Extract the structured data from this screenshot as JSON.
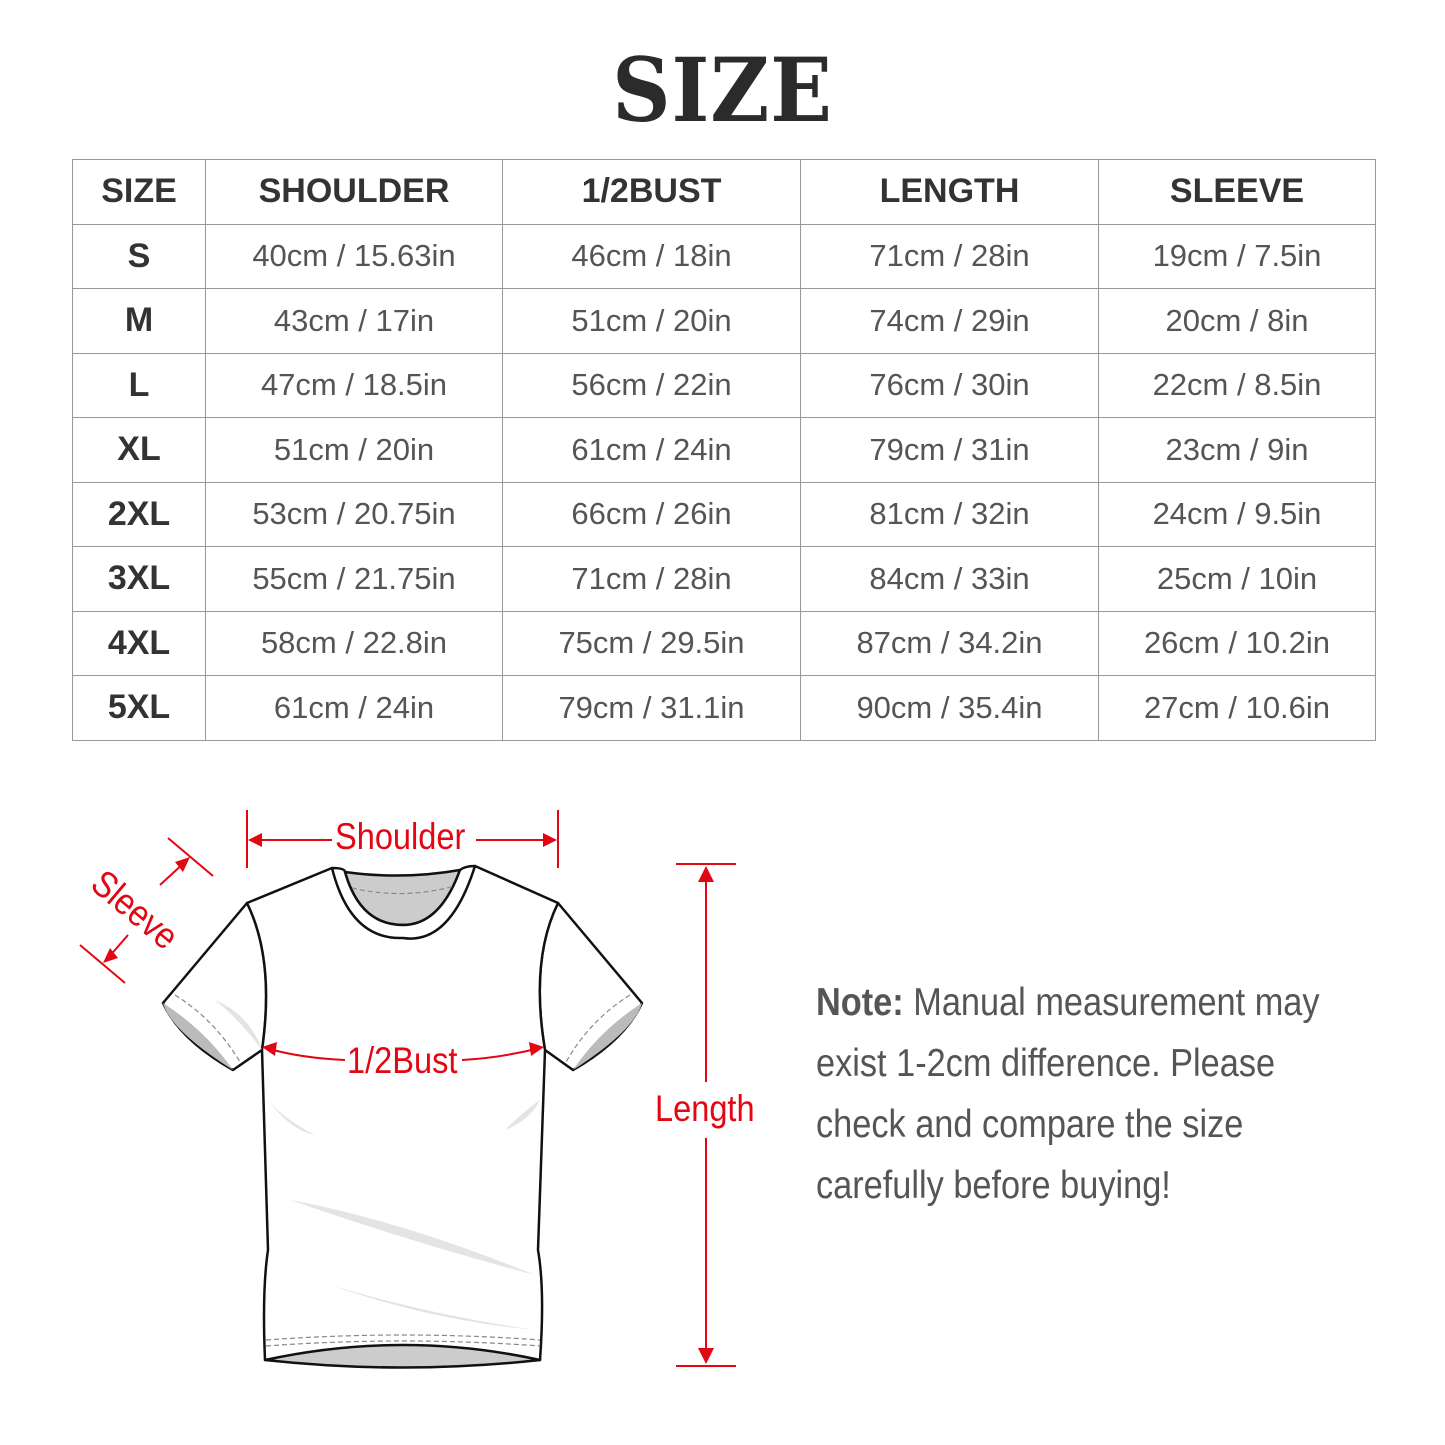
{
  "title": "SIZE",
  "table": {
    "headers": [
      "SIZE",
      "SHOULDER",
      "1/2BUST",
      "LENGTH",
      "SLEEVE"
    ],
    "rows": [
      [
        "S",
        "40cm / 15.63in",
        "46cm / 18in",
        "71cm / 28in",
        "19cm / 7.5in"
      ],
      [
        "M",
        "43cm / 17in",
        "51cm / 20in",
        "74cm / 29in",
        "20cm / 8in"
      ],
      [
        "L",
        "47cm / 18.5in",
        "56cm / 22in",
        "76cm / 30in",
        "22cm / 8.5in"
      ],
      [
        "XL",
        "51cm / 20in",
        "61cm / 24in",
        "79cm / 31in",
        "23cm / 9in"
      ],
      [
        "2XL",
        "53cm / 20.75in",
        "66cm / 26in",
        "81cm / 32in",
        "24cm / 9.5in"
      ],
      [
        "3XL",
        "55cm / 21.75in",
        "71cm / 28in",
        "84cm / 33in",
        "25cm / 10in"
      ],
      [
        "4XL",
        "58cm / 22.8in",
        "75cm / 29.5in",
        "87cm / 34.2in",
        "26cm / 10.2in"
      ],
      [
        "5XL",
        "61cm / 24in",
        "79cm / 31.1in",
        "90cm / 35.4in",
        "27cm / 10.6in"
      ]
    ]
  },
  "diagram": {
    "shoulder": "Shoulder",
    "sleeve": "Sleeve",
    "bust": "1/2Bust",
    "length": "Length",
    "accent_color": "#e30613"
  },
  "note": {
    "label": "Note:",
    "text": " Manual measurement may exist 1-2cm difference. Please check and compare the size carefully before buying!"
  }
}
